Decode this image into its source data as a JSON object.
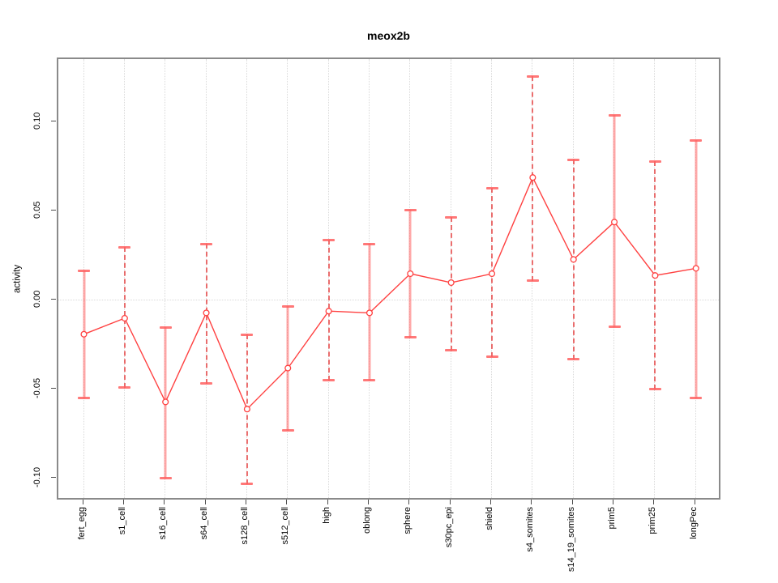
{
  "page": {
    "background": "#ffffff"
  },
  "chart_data": {
    "type": "line",
    "title": "meox2b",
    "xlabel": "",
    "ylabel": "activity",
    "categories": [
      "fert_egg",
      "s1_cell",
      "s16_cell",
      "s64_cell",
      "s128_cell",
      "s512_cell",
      "high",
      "oblong",
      "sphere",
      "s30pc_epi",
      "shield",
      "s4_somites",
      "s14_19_somites",
      "prim5",
      "prim25",
      "longPec"
    ],
    "series": [
      {
        "name": "meox2b activity",
        "marker": "open-circle",
        "values": [
          -0.019,
          -0.01,
          -0.057,
          -0.007,
          -0.061,
          -0.038,
          -0.006,
          -0.007,
          0.015,
          0.01,
          0.015,
          0.069,
          0.023,
          0.044,
          0.014,
          0.018
        ],
        "err_high": [
          0.017,
          0.03,
          -0.015,
          0.032,
          -0.019,
          -0.003,
          0.034,
          0.032,
          0.051,
          0.047,
          0.063,
          0.126,
          0.079,
          0.104,
          0.078,
          0.09
        ],
        "err_low": [
          -0.055,
          -0.049,
          -0.1,
          -0.047,
          -0.103,
          -0.073,
          -0.045,
          -0.045,
          -0.021,
          -0.028,
          -0.032,
          0.011,
          -0.033,
          -0.015,
          -0.05,
          -0.055
        ],
        "errorbar_line_styles": [
          "solid",
          "dashed",
          "solid",
          "dashed",
          "dashed",
          "solid",
          "dashed",
          "solid",
          "solid",
          "dashed",
          "dashed",
          "dashed",
          "dashed",
          "solid",
          "dashed",
          "solid"
        ]
      }
    ],
    "ytick_labels": [
      "0.10",
      "0.05",
      "0.00",
      "-0.05",
      "-0.10"
    ],
    "ytick_values": [
      0.1,
      0.05,
      0.0,
      -0.05,
      -0.1
    ],
    "ylim": [
      -0.1125,
      0.1355
    ],
    "legend": "none",
    "grid": {
      "vertical_dotted_per_category": true,
      "horizontal_dotted_at_zero": true
    },
    "colors": {
      "line": "#ff4040",
      "marker_stroke": "#ff4040",
      "marker_fill": "#ffffff",
      "errorbar_solid": "#ff6060",
      "errorbar_dashed": "#e53939",
      "grid": "#d9d9d9",
      "frame": "#8a8a8a",
      "tick": "#4d4d4d",
      "text": "#000000"
    }
  }
}
